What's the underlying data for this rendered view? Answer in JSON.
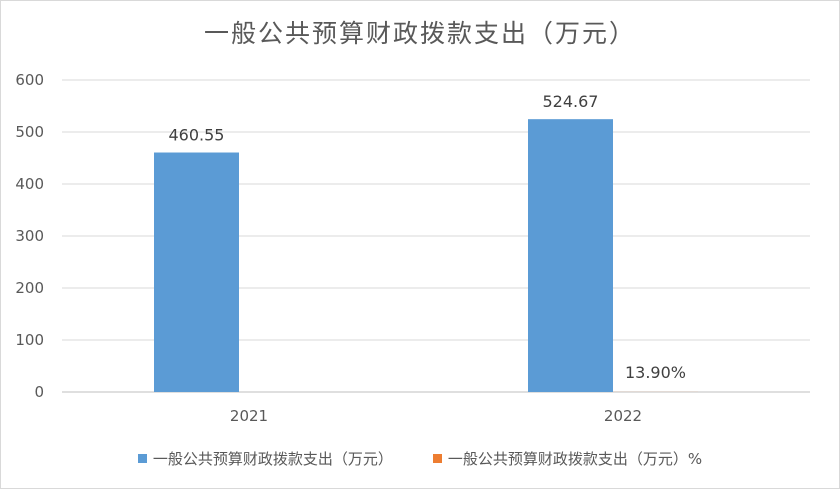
{
  "chart_data": {
    "type": "bar",
    "title": "一般公共预算财政拨款支出（万元）",
    "categories": [
      "2021",
      "2022"
    ],
    "ylim": [
      0,
      600
    ],
    "yticks": [
      "0",
      "100",
      "200",
      "300",
      "400",
      "500",
      "600"
    ],
    "grid": true,
    "legend_position": "bottom",
    "series": [
      {
        "name": "一般公共预算财政拨款支出（万元）",
        "values": [
          460.55,
          524.67
        ],
        "labels": [
          "460.55",
          "524.67"
        ],
        "color": "#5b9bd5"
      },
      {
        "name": "一般公共预算财政拨款支出（万元）%",
        "values": [
          null,
          0.139
        ],
        "labels": [
          "",
          "13.90%"
        ],
        "color": "#ed7d31"
      }
    ]
  }
}
